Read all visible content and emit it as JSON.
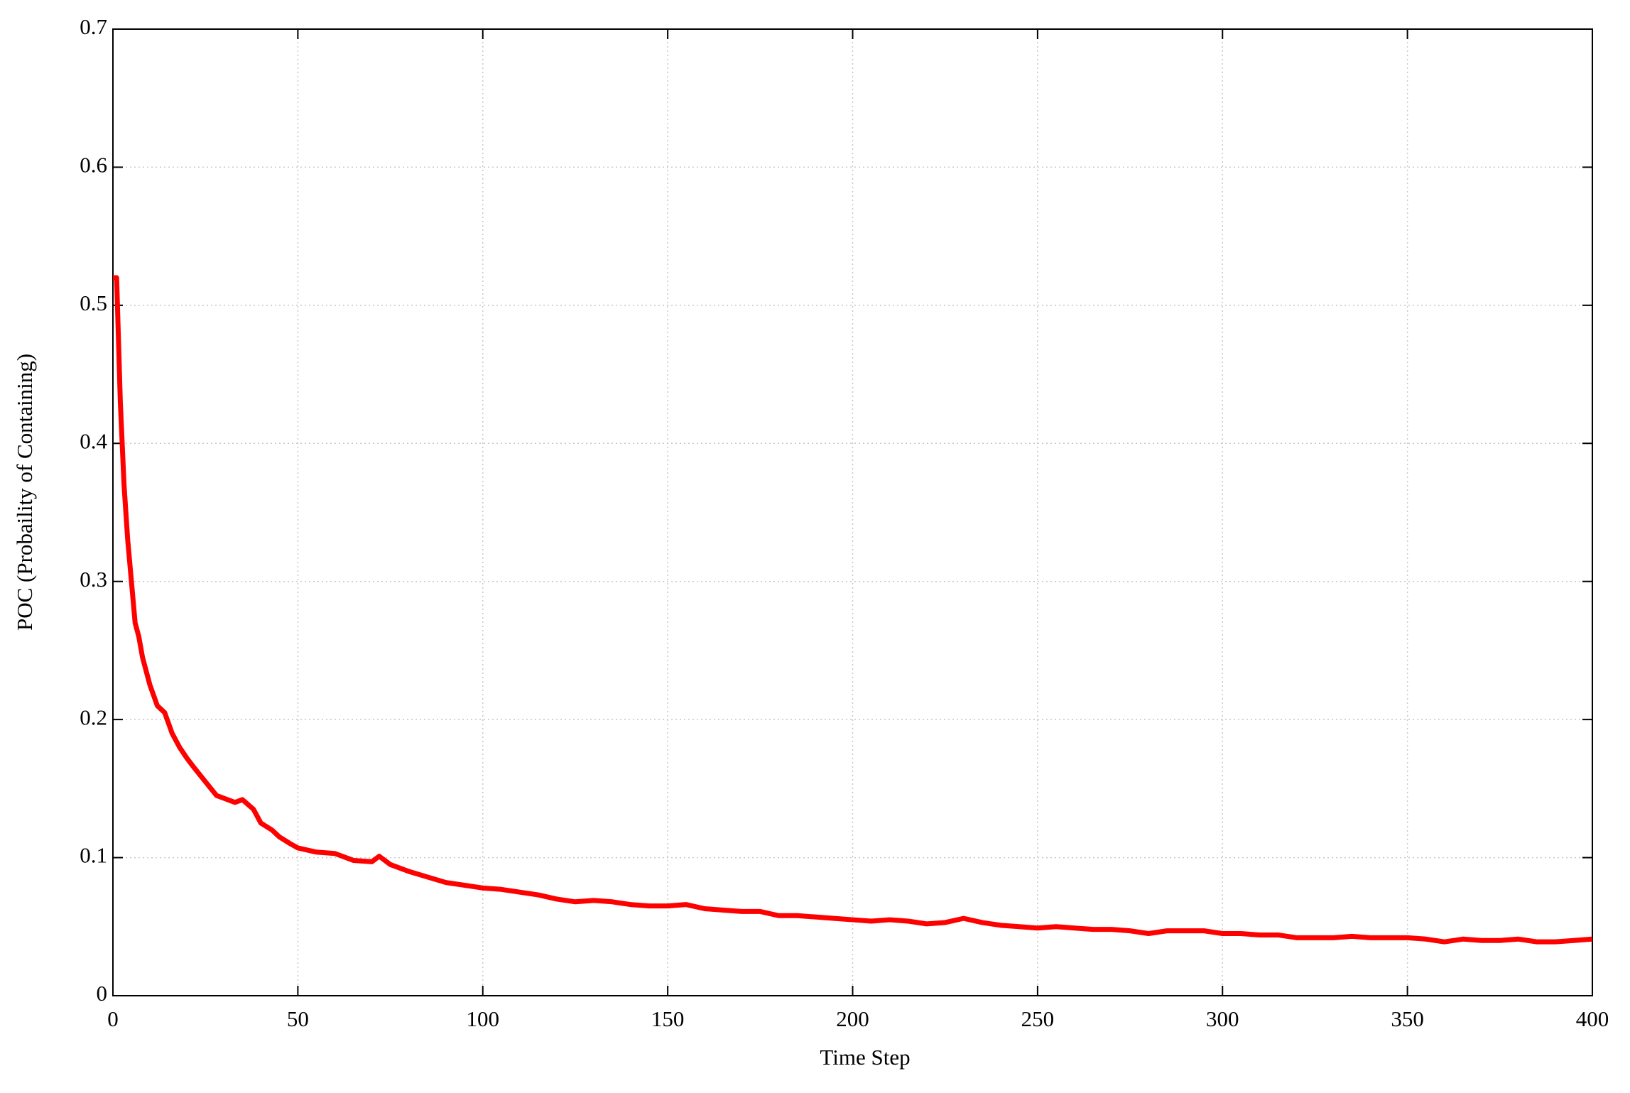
{
  "chart_data": {
    "type": "line",
    "x_label": "Time Step",
    "y_label": "POC (Probaility of Containing)",
    "x": [
      0,
      1,
      2,
      3,
      4,
      5,
      6,
      7,
      8,
      10,
      12,
      14,
      16,
      18,
      20,
      22,
      25,
      28,
      30,
      33,
      35,
      38,
      40,
      43,
      45,
      48,
      50,
      55,
      60,
      65,
      70,
      72,
      75,
      80,
      85,
      90,
      95,
      100,
      105,
      110,
      115,
      120,
      125,
      130,
      135,
      140,
      145,
      150,
      155,
      160,
      165,
      170,
      175,
      180,
      185,
      190,
      195,
      200,
      205,
      210,
      215,
      220,
      225,
      230,
      235,
      240,
      245,
      250,
      255,
      260,
      265,
      270,
      275,
      280,
      285,
      290,
      295,
      300,
      305,
      310,
      315,
      320,
      325,
      330,
      335,
      340,
      345,
      350,
      355,
      360,
      365,
      370,
      375,
      380,
      385,
      390,
      395,
      400
    ],
    "series": [
      {
        "color": "#ff0000",
        "values": [
          0.52,
          0.52,
          0.43,
          0.37,
          0.33,
          0.3,
          0.27,
          0.26,
          0.245,
          0.225,
          0.21,
          0.205,
          0.19,
          0.18,
          0.172,
          0.165,
          0.155,
          0.145,
          0.143,
          0.14,
          0.142,
          0.135,
          0.125,
          0.12,
          0.115,
          0.11,
          0.107,
          0.104,
          0.103,
          0.098,
          0.097,
          0.101,
          0.095,
          0.09,
          0.086,
          0.082,
          0.08,
          0.078,
          0.077,
          0.075,
          0.073,
          0.07,
          0.068,
          0.069,
          0.068,
          0.066,
          0.065,
          0.065,
          0.066,
          0.063,
          0.062,
          0.061,
          0.061,
          0.058,
          0.058,
          0.057,
          0.056,
          0.055,
          0.054,
          0.055,
          0.054,
          0.052,
          0.053,
          0.056,
          0.053,
          0.051,
          0.05,
          0.049,
          0.05,
          0.049,
          0.048,
          0.048,
          0.047,
          0.045,
          0.047,
          0.047,
          0.047,
          0.045,
          0.045,
          0.044,
          0.044,
          0.042,
          0.042,
          0.042,
          0.043,
          0.042,
          0.042,
          0.042,
          0.041,
          0.039,
          0.041,
          0.04,
          0.04,
          0.041,
          0.039,
          0.039,
          0.04,
          0.041
        ]
      }
    ],
    "xlim": [
      0,
      400
    ],
    "xticks": [
      0,
      50,
      100,
      150,
      200,
      250,
      300,
      350,
      400
    ],
    "ylim": [
      0,
      0.7
    ],
    "yticks": [
      0,
      0.1,
      0.2,
      0.3,
      0.4,
      0.5,
      0.6,
      0.7
    ],
    "grid": true
  }
}
